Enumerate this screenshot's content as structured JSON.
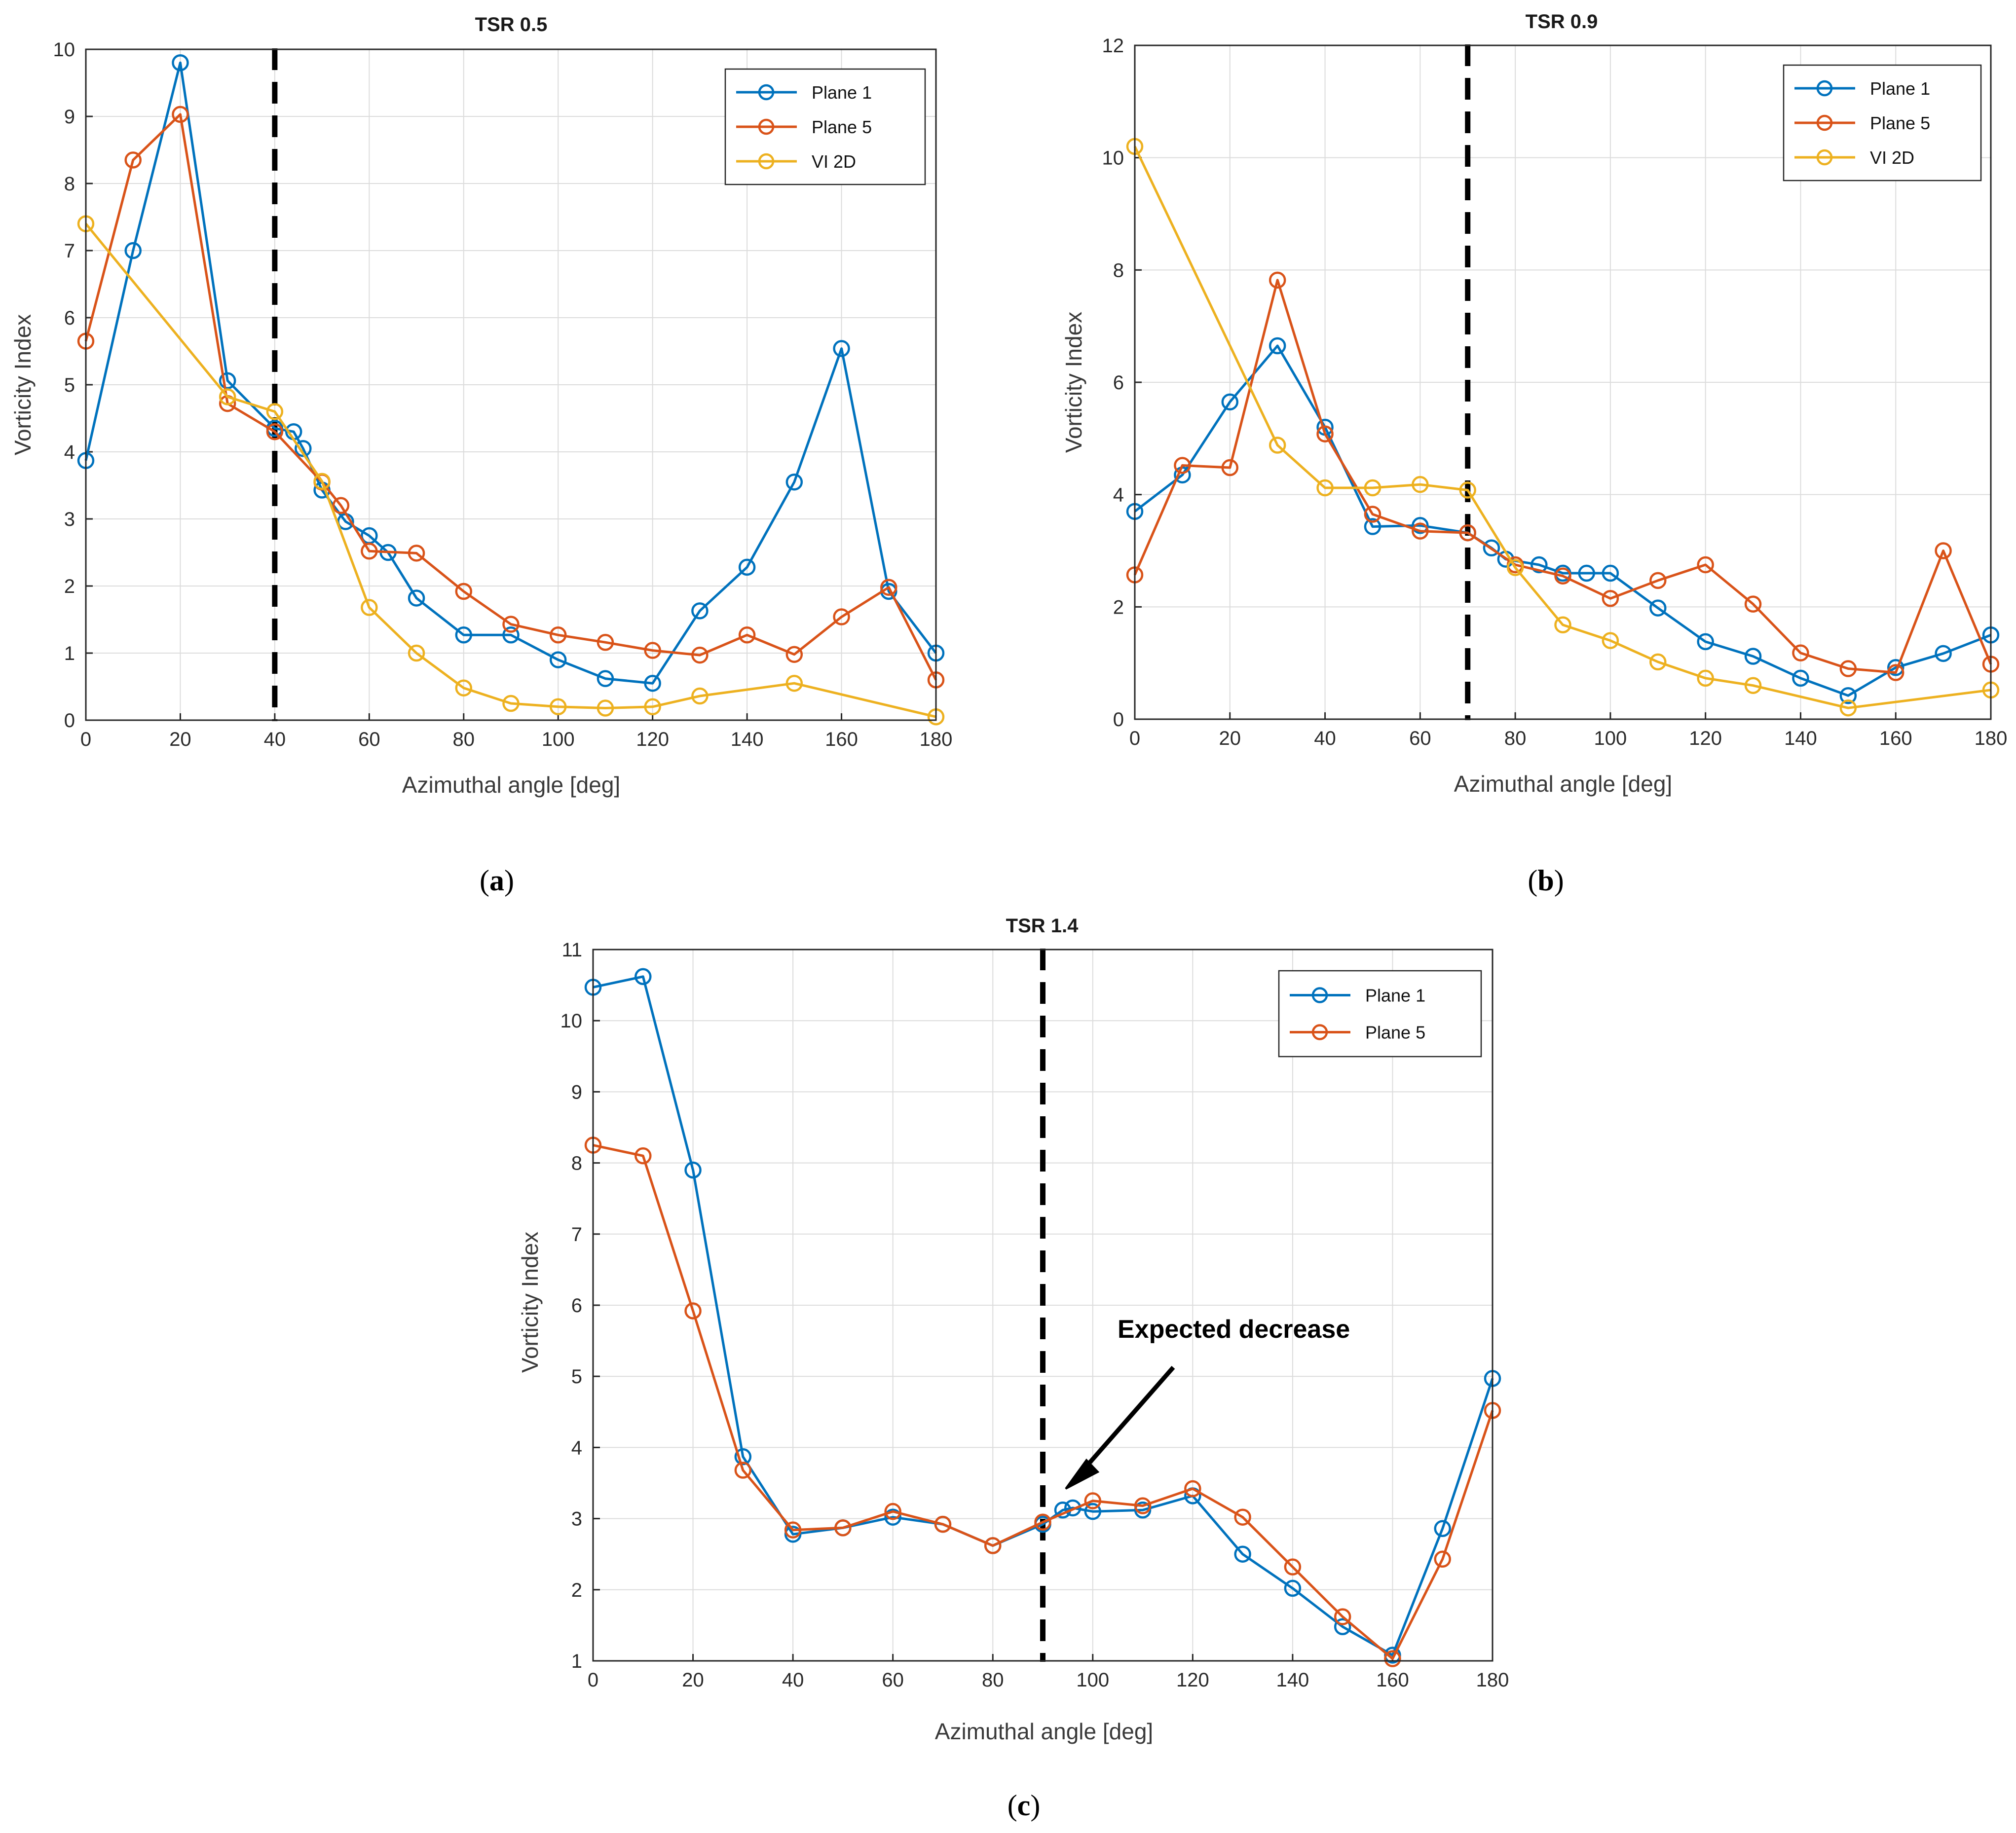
{
  "colors": {
    "plane1": "#0072BD",
    "plane5": "#D95319",
    "vi2d": "#EDB120",
    "grid": "#dcdcdc",
    "frame": "#262626",
    "marker_line": "#000000"
  },
  "chart_data": [
    {
      "id": "a",
      "type": "line",
      "title": "TSR 0.5",
      "xlabel": "Azimuthal angle [deg]",
      "ylabel": "Vorticity Index",
      "xlim": [
        0,
        180
      ],
      "ylim": [
        0,
        10
      ],
      "xticks": [
        0,
        20,
        40,
        60,
        80,
        100,
        120,
        140,
        160,
        180
      ],
      "yticks": [
        0,
        1,
        2,
        3,
        4,
        5,
        6,
        7,
        8,
        9,
        10
      ],
      "grid": true,
      "legend_position": "top-right",
      "vertical_line_x": 40,
      "caption": {
        "open": "(",
        "letter": "a",
        "close": ")"
      },
      "series": [
        {
          "name": "Plane 1",
          "color_key": "plane1",
          "x": [
            0,
            10,
            20,
            30,
            40,
            44,
            46,
            50,
            55,
            60,
            64,
            70,
            80,
            90,
            100,
            110,
            120,
            130,
            140,
            150,
            160,
            170,
            180
          ],
          "y": [
            3.87,
            7.0,
            9.8,
            5.06,
            4.35,
            4.3,
            4.05,
            3.43,
            2.96,
            2.75,
            2.5,
            1.82,
            1.27,
            1.27,
            0.9,
            0.62,
            0.55,
            1.63,
            2.28,
            3.55,
            5.54,
            1.92,
            1.0
          ]
        },
        {
          "name": "Plane 5",
          "color_key": "plane5",
          "x": [
            0,
            10,
            20,
            30,
            40,
            50,
            54,
            60,
            70,
            80,
            90,
            100,
            110,
            120,
            130,
            140,
            150,
            160,
            170,
            180
          ],
          "y": [
            5.65,
            8.35,
            9.03,
            4.72,
            4.3,
            3.55,
            3.2,
            2.52,
            2.49,
            1.92,
            1.43,
            1.27,
            1.16,
            1.04,
            0.97,
            1.27,
            0.98,
            1.54,
            1.98,
            0.6
          ]
        },
        {
          "name": "VI 2D",
          "color_key": "vi2d",
          "x": [
            0,
            30,
            40,
            50,
            60,
            70,
            80,
            90,
            100,
            110,
            120,
            130,
            150,
            180
          ],
          "y": [
            7.4,
            4.82,
            4.6,
            3.56,
            1.68,
            1.0,
            0.48,
            0.25,
            0.2,
            0.18,
            0.2,
            0.36,
            0.55,
            0.05
          ]
        }
      ]
    },
    {
      "id": "b",
      "type": "line",
      "title": "TSR 0.9",
      "xlabel": "Azimuthal angle [deg]",
      "ylabel": "Vorticity Index",
      "xlim": [
        0,
        180
      ],
      "ylim": [
        0,
        12
      ],
      "xticks": [
        0,
        20,
        40,
        60,
        80,
        100,
        120,
        140,
        160,
        180
      ],
      "yticks": [
        0,
        2,
        4,
        6,
        8,
        10,
        12
      ],
      "grid": true,
      "legend_position": "top-right",
      "vertical_line_x": 70,
      "caption": {
        "open": "(",
        "letter": "b",
        "close": ")"
      },
      "series": [
        {
          "name": "Plane 1",
          "color_key": "plane1",
          "x": [
            0,
            10,
            20,
            30,
            40,
            50,
            60,
            70,
            75,
            78,
            85,
            90,
            95,
            100,
            110,
            120,
            130,
            140,
            150,
            160,
            170,
            180
          ],
          "y": [
            3.7,
            4.35,
            5.65,
            6.65,
            5.2,
            3.43,
            3.45,
            3.32,
            3.05,
            2.85,
            2.75,
            2.6,
            2.6,
            2.6,
            1.98,
            1.38,
            1.12,
            0.73,
            0.42,
            0.92,
            1.17,
            1.5
          ]
        },
        {
          "name": "Plane 5",
          "color_key": "plane5",
          "x": [
            0,
            10,
            20,
            30,
            40,
            50,
            60,
            70,
            80,
            90,
            100,
            110,
            120,
            130,
            140,
            150,
            160,
            170,
            180
          ],
          "y": [
            2.57,
            4.52,
            4.48,
            7.82,
            5.08,
            3.65,
            3.35,
            3.32,
            2.75,
            2.55,
            2.15,
            2.47,
            2.75,
            2.05,
            1.18,
            0.9,
            0.83,
            3.0,
            0.98
          ]
        },
        {
          "name": "VI 2D",
          "color_key": "vi2d",
          "x": [
            0,
            30,
            40,
            50,
            60,
            70,
            80,
            90,
            100,
            110,
            120,
            130,
            150,
            180
          ],
          "y": [
            10.2,
            4.88,
            4.12,
            4.12,
            4.18,
            4.08,
            2.7,
            1.68,
            1.4,
            1.02,
            0.73,
            0.6,
            0.2,
            0.52
          ]
        }
      ]
    },
    {
      "id": "c",
      "type": "line",
      "title": "TSR 1.4",
      "xlabel": "Azimuthal angle [deg]",
      "ylabel": "Vorticity Index",
      "xlim": [
        0,
        180
      ],
      "ylim": [
        1,
        11
      ],
      "xticks": [
        0,
        20,
        40,
        60,
        80,
        100,
        120,
        140,
        160,
        180
      ],
      "yticks": [
        1,
        2,
        3,
        4,
        5,
        6,
        7,
        8,
        9,
        10,
        11
      ],
      "grid": true,
      "legend_position": "top-right",
      "vertical_line_x": 90,
      "caption": {
        "open": "(",
        "letter": "c",
        "close": ")"
      },
      "annotation": {
        "text": "Expected decrease",
        "x": 95,
        "y": 3.5
      },
      "series": [
        {
          "name": "Plane 1",
          "color_key": "plane1",
          "x": [
            0,
            10,
            20,
            30,
            40,
            50,
            60,
            70,
            80,
            90,
            94,
            96,
            100,
            110,
            120,
            130,
            140,
            150,
            160,
            170,
            180
          ],
          "y": [
            10.47,
            10.62,
            7.9,
            3.87,
            2.78,
            2.87,
            3.02,
            2.92,
            2.62,
            2.92,
            3.12,
            3.15,
            3.1,
            3.12,
            3.32,
            2.5,
            2.02,
            1.48,
            1.08,
            2.86,
            4.97
          ]
        },
        {
          "name": "Plane 5",
          "color_key": "plane5",
          "x": [
            0,
            10,
            20,
            30,
            40,
            50,
            60,
            70,
            80,
            90,
            100,
            110,
            120,
            130,
            140,
            150,
            160,
            170,
            180
          ],
          "y": [
            8.25,
            8.1,
            5.92,
            3.68,
            2.84,
            2.87,
            3.1,
            2.92,
            2.62,
            2.95,
            3.25,
            3.18,
            3.42,
            3.02,
            2.32,
            1.62,
            1.03,
            2.43,
            4.52
          ]
        }
      ]
    }
  ]
}
